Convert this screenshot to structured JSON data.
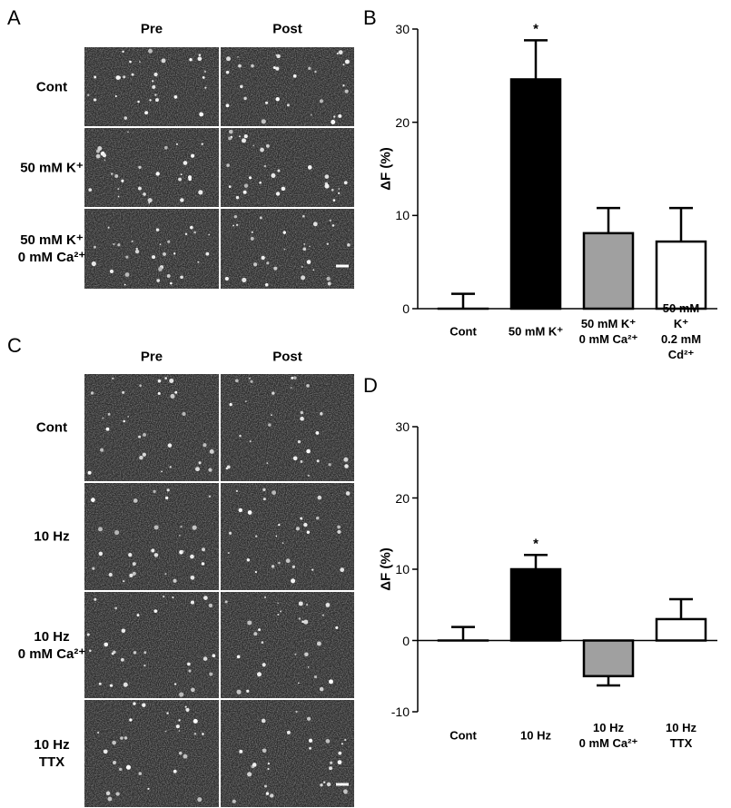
{
  "panels": {
    "A": {
      "letter": "A",
      "columns": [
        "Pre",
        "Post"
      ],
      "rows": [
        "Cont",
        "50 mM K⁺",
        "50 mM K⁺\n0 mM Ca²⁺"
      ]
    },
    "C": {
      "letter": "C",
      "columns": [
        "Pre",
        "Post"
      ],
      "rows": [
        "Cont",
        "10 Hz",
        "10 Hz\n0 mM Ca²⁺",
        "10 Hz\nTTX"
      ]
    }
  },
  "chart_data": [
    {
      "type": "bar",
      "letter": "B",
      "ylabel": "ΔF (%)",
      "categories": [
        "Cont",
        "50 mM K⁺",
        "50 mM K⁺\n0 mM Ca²⁺",
        "50 mM K⁺\n0.2 mM Cd²⁺"
      ],
      "values": [
        0,
        24.6,
        8.1,
        7.2
      ],
      "errors": [
        1.6,
        4.2,
        2.7,
        3.6
      ],
      "colors": [
        "#ffffff",
        "#000000",
        "#a0a0a0",
        "#ffffff"
      ],
      "annotations": [
        {
          "index": 1,
          "text": "*"
        }
      ],
      "ylim": [
        0,
        30
      ],
      "yticks": [
        0,
        10,
        20,
        30
      ]
    },
    {
      "type": "bar",
      "letter": "D",
      "ylabel": "ΔF (%)",
      "categories": [
        "Cont",
        "10 Hz",
        "10 Hz\n0 mM Ca²⁺",
        "10 Hz\nTTX"
      ],
      "values": [
        0,
        10,
        -5,
        3
      ],
      "errors": [
        1.9,
        2,
        1.3,
        2.8
      ],
      "colors": [
        "#ffffff",
        "#000000",
        "#a0a0a0",
        "#ffffff"
      ],
      "annotations": [
        {
          "index": 1,
          "text": "*"
        }
      ],
      "ylim": [
        -10,
        30
      ],
      "yticks": [
        -10,
        0,
        10,
        20,
        30
      ]
    }
  ]
}
